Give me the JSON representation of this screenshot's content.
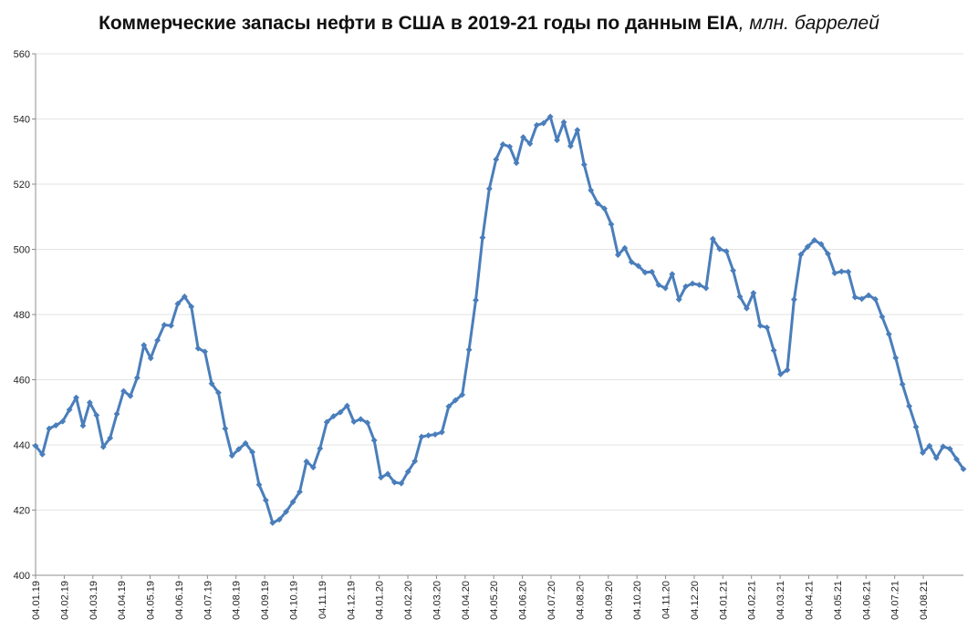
{
  "chart_data": {
    "type": "line",
    "title": "Коммерческие запасы нефти в США в 2019-21 годы по данным EIA",
    "title_unit": ", млн. баррелей",
    "xlabel": "",
    "ylabel": "",
    "ylim": [
      400,
      560
    ],
    "yticks": [
      400,
      420,
      440,
      460,
      480,
      500,
      520,
      540,
      560
    ],
    "grid": true,
    "legend": "none",
    "color": "#4A7EBB",
    "xticks": [
      "04.01.19",
      "04.02.19",
      "04.03.19",
      "04.04.19",
      "04.05.19",
      "04.06.19",
      "04.07.19",
      "04.08.19",
      "04.09.19",
      "04.10.19",
      "04.11.19",
      "04.12.19",
      "04.01.20",
      "04.02.20",
      "04.03.20",
      "04.04.20",
      "04.05.20",
      "04.06.20",
      "04.07.20",
      "04.08.20",
      "04.09.20",
      "04.10.20",
      "04.11.20",
      "04.12.20",
      "04.01.21",
      "04.02.21",
      "04.03.21",
      "04.04.21",
      "04.05.21",
      "04.06.21",
      "04.07.21",
      "04.08.21"
    ],
    "series": [
      {
        "name": "Коммерческие запасы нефти",
        "values": [
          439.7,
          437.1,
          445.0,
          446.0,
          447.2,
          450.8,
          454.5,
          445.9,
          453.0,
          449.1,
          439.4,
          442.1,
          449.5,
          456.5,
          455.0,
          460.6,
          470.6,
          466.6,
          472.1,
          476.8,
          476.6,
          483.3,
          485.5,
          482.4,
          469.6,
          468.6,
          458.8,
          456.0,
          445.0,
          436.7,
          438.7,
          440.5,
          437.8,
          427.8,
          423.0,
          416.1,
          417.1,
          419.5,
          422.5,
          425.6,
          434.9,
          433.1,
          438.9,
          447.0,
          448.8,
          450.0,
          452.0,
          447.1,
          447.9,
          446.8,
          441.4,
          430.0,
          431.1,
          428.5,
          428.2,
          431.8,
          435.0,
          442.5,
          442.9,
          443.2,
          443.9,
          451.8,
          453.7,
          455.4,
          469.2,
          484.4,
          503.6,
          518.6,
          527.6,
          532.2,
          531.5,
          526.5,
          534.4,
          532.4,
          538.1,
          538.7,
          540.7,
          533.5,
          539.0,
          531.7,
          536.6,
          526.0,
          518.1,
          514.1,
          512.5,
          507.7,
          498.3,
          500.4,
          496.1,
          494.9,
          492.9,
          493.1,
          489.1,
          488.1,
          492.4,
          484.6,
          488.6,
          489.5,
          489.1,
          488.1,
          503.2,
          500.1,
          499.4,
          493.5,
          485.5,
          481.9,
          486.6,
          476.6,
          476.0,
          469.0,
          461.7,
          463.0,
          484.6,
          498.4,
          500.8,
          502.8,
          501.6,
          498.6,
          492.7,
          493.2,
          493.1,
          485.3,
          484.8,
          485.9,
          484.7,
          479.3,
          474.0,
          466.7,
          458.6,
          451.9,
          445.5,
          437.6,
          439.7,
          436.0,
          439.5,
          438.8,
          435.6,
          432.6
        ]
      }
    ]
  }
}
